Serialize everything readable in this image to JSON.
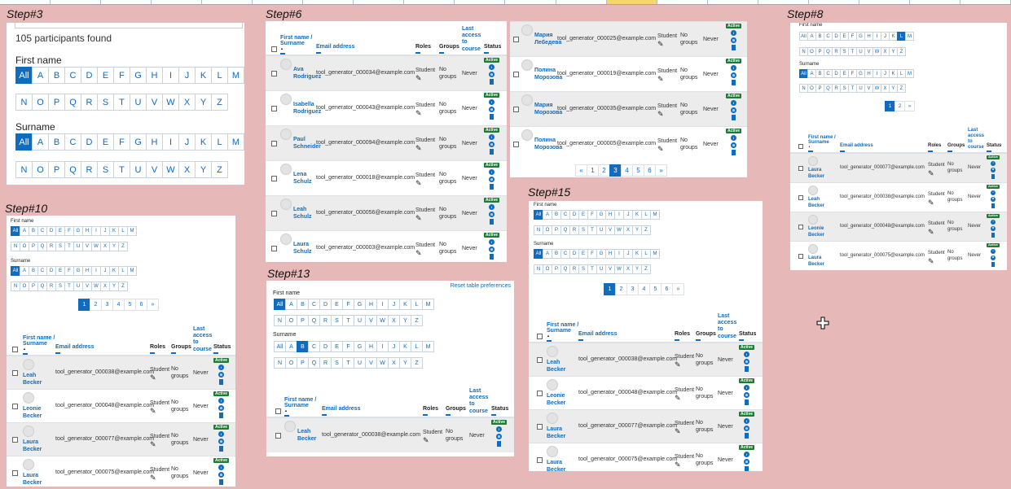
{
  "steps": {
    "s3": "Step#3",
    "s6": "Step#6",
    "s8": "Step#8",
    "s10": "Step#10",
    "s13": "Step#13",
    "s15": "Step#15"
  },
  "letters": {
    "row1": [
      "All",
      "A",
      "B",
      "C",
      "D",
      "E",
      "F",
      "G",
      "H",
      "I",
      "J",
      "K",
      "L",
      "M"
    ],
    "row2": [
      "N",
      "O",
      "P",
      "Q",
      "R",
      "S",
      "T",
      "U",
      "V",
      "W",
      "X",
      "Y",
      "Z"
    ]
  },
  "labels": {
    "first_name": "First name",
    "surname": "Surname",
    "found": "105 participants found",
    "reset": "Reset table preferences",
    "active": "Active",
    "student": "Student",
    "never": "Never",
    "no": "No",
    "groups_word": "groups"
  },
  "headers": {
    "name1": "First name /",
    "name2": "Surname",
    "email": "Email address",
    "roles": "Roles",
    "groups": "Groups",
    "last1": "Last",
    "last2": "access",
    "last3": "to",
    "last4": "course",
    "status": "Status"
  },
  "pager_short": [
    "1",
    "2",
    "»"
  ],
  "pager_long": [
    "1",
    "2",
    "3",
    "4",
    "5",
    "6",
    "»"
  ],
  "pager_mid": [
    "«",
    "1",
    "2",
    "3",
    "4",
    "5",
    "6",
    "»"
  ],
  "step6_rows": [
    {
      "first": "Ava",
      "last": "Rodriguez",
      "email": "tool_generator_000034@example.com"
    },
    {
      "first": "Isabella",
      "last": "Rodriguez",
      "email": "tool_generator_000043@example.com"
    },
    {
      "first": "Paul",
      "last": "Schneider",
      "email": "tool_generator_000094@example.com"
    },
    {
      "first": "Lena",
      "last": "Schulz",
      "email": "tool_generator_000018@example.com"
    },
    {
      "first": "Leah",
      "last": "Schulz",
      "email": "tool_generator_000056@example.com"
    },
    {
      "first": "Laura",
      "last": "Schulz",
      "email": "tool_generator_000003@example.com"
    }
  ],
  "ru_rows": [
    {
      "first": "Мария",
      "last": "Лебедева",
      "email": "tool_generator_000025@example.com"
    },
    {
      "first": "Полина",
      "last": "Морозова",
      "email": "tool_generator_000019@example.com"
    },
    {
      "first": "Мария",
      "last": "Морозова",
      "email": "tool_generator_000035@example.com"
    },
    {
      "first": "Полина",
      "last": "Морозова",
      "email": "tool_generator_000005@example.com"
    }
  ],
  "step8_rows": [
    {
      "first": "Laura",
      "last": "Becker",
      "email": "tool_generator_000077@example.com"
    },
    {
      "first": "Leah",
      "last": "Becker",
      "email": "tool_generator_000038@example.com"
    },
    {
      "first": "Leonie",
      "last": "Becker",
      "email": "tool_generator_000048@example.com"
    },
    {
      "first": "Laura",
      "last": "Becker",
      "email": "tool_generator_000075@example.com"
    }
  ],
  "step10_rows": [
    {
      "first": "Leah",
      "last": "Becker",
      "email": "tool_generator_000038@example.com"
    },
    {
      "first": "Leonie",
      "last": "Becker",
      "email": "tool_generator_000048@example.com"
    },
    {
      "first": "Laura",
      "last": "Becker",
      "email": "tool_generator_000077@example.com"
    },
    {
      "first": "Laura",
      "last": "Becker",
      "email": "tool_generator_000075@example.com"
    }
  ],
  "step13_rows": [
    {
      "first": "Leah",
      "last": "Becker",
      "email": "tool_generator_000038@example.com"
    }
  ],
  "step15_rows": [
    {
      "first": "Leah",
      "last": "Becker",
      "email": "tool_generator_000038@example.com"
    },
    {
      "first": "Leonie",
      "last": "Becker",
      "email": "tool_generator_000048@example.com"
    },
    {
      "first": "Laura",
      "last": "Becker",
      "email": "tool_generator_000077@example.com"
    },
    {
      "first": "Laura",
      "last": "Becker",
      "email": "tool_generator_000075@example.com"
    }
  ],
  "colors": {
    "accent": "#0f6cbf",
    "active": "#1b7d34",
    "background": "#e6b8b7"
  }
}
